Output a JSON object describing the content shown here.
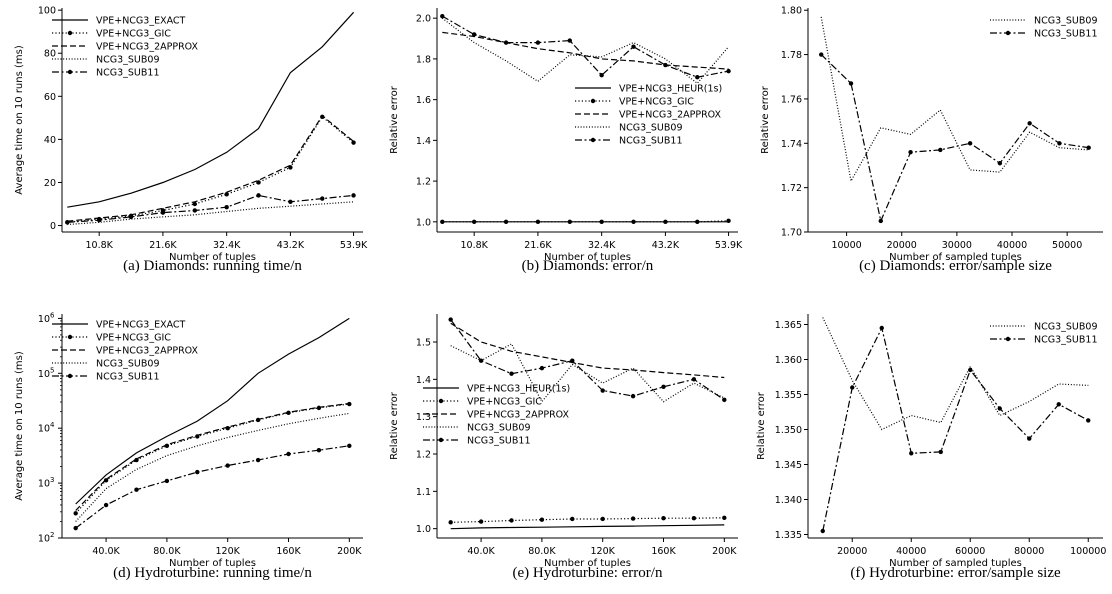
{
  "chart_data": [
    {
      "type": "line",
      "caption": "(a) Diamonds: running time/n",
      "xlabel": "Number of tuples",
      "ylabel": "Average time on 10 runs (ms)",
      "xlim": [
        4500,
        55500
      ],
      "ylim": [
        -3,
        101
      ],
      "xscale": "linear",
      "yscale": "linear",
      "xticks": [
        10800,
        21600,
        32400,
        43200,
        53900
      ],
      "xtick_labels": [
        "10.8K",
        "21.6K",
        "32.4K",
        "43.2K",
        "53.9K"
      ],
      "yticks": [
        0,
        20,
        40,
        60,
        80,
        100
      ],
      "ytick_labels": [
        "0",
        "20",
        "40",
        "60",
        "80",
        "100"
      ],
      "legend_loc": "upper-left",
      "series": [
        {
          "name": "VPE+NCG3_EXACT",
          "style": "solid",
          "x": [
            5400,
            10800,
            16200,
            21600,
            27000,
            32400,
            37800,
            43200,
            48600,
            53900
          ],
          "y": [
            8.5,
            11,
            15,
            20,
            26,
            34,
            45,
            71,
            83,
            99
          ]
        },
        {
          "name": "VPE+NCG3_GIC",
          "style": "dotted-marker",
          "x": [
            5400,
            10800,
            16200,
            21600,
            27000,
            32400,
            37800,
            43200,
            48600,
            53900
          ],
          "y": [
            1.5,
            3,
            4.5,
            7,
            10,
            14.5,
            20,
            27,
            50.5,
            38.5
          ]
        },
        {
          "name": "VPE+NCG3_2APPROX",
          "style": "dashed",
          "x": [
            5400,
            10800,
            16200,
            21600,
            27000,
            32400,
            37800,
            43200,
            48600,
            53900
          ],
          "y": [
            2,
            3.5,
            5,
            8,
            11,
            15.5,
            21,
            28,
            51,
            39
          ]
        },
        {
          "name": "NCG3_SUB09",
          "style": "dotted",
          "x": [
            5400,
            10800,
            16200,
            21600,
            27000,
            32400,
            37800,
            43200,
            48600,
            53900
          ],
          "y": [
            0.5,
            1.5,
            3,
            4,
            5,
            6.5,
            8,
            9,
            10,
            11
          ]
        },
        {
          "name": "NCG3_SUB11",
          "style": "dashdot-marker",
          "x": [
            5400,
            10800,
            16200,
            21600,
            27000,
            32400,
            37800,
            43200,
            48600,
            53900
          ],
          "y": [
            1.5,
            2.5,
            4,
            6,
            7,
            8.5,
            14,
            11,
            12.5,
            14
          ]
        }
      ]
    },
    {
      "type": "line",
      "caption": "(b) Diamonds: error/n",
      "xlabel": "Number of tuples",
      "ylabel": "Relative error",
      "xlim": [
        4500,
        55500
      ],
      "ylim": [
        0.95,
        2.05
      ],
      "xscale": "linear",
      "yscale": "linear",
      "xticks": [
        10800,
        21600,
        32400,
        43200,
        53900
      ],
      "xtick_labels": [
        "10.8K",
        "21.6K",
        "32.4K",
        "43.2K",
        "53.9K"
      ],
      "yticks": [
        1.0,
        1.2,
        1.4,
        1.6,
        1.8,
        2.0
      ],
      "ytick_labels": [
        "1.0",
        "1.2",
        "1.4",
        "1.6",
        "1.8",
        "2.0"
      ],
      "legend_loc": "center-right",
      "series": [
        {
          "name": "VPE+NCG3_HEUR(1s)",
          "style": "solid",
          "x": [
            5400,
            10800,
            16200,
            21600,
            27000,
            32400,
            37800,
            43200,
            48600,
            53900
          ],
          "y": [
            1.0,
            1.0,
            1.0,
            1.0,
            1.0,
            1.0,
            1.0,
            1.0,
            1.0,
            1.0
          ]
        },
        {
          "name": "VPE+NCG3_GIC",
          "style": "dotted-marker",
          "x": [
            5400,
            10800,
            16200,
            21600,
            27000,
            32400,
            37800,
            43200,
            48600,
            53900
          ],
          "y": [
            1.0,
            1.0,
            1.0,
            1.0,
            1.0,
            1.0,
            1.0,
            1.0,
            1.0,
            1.005
          ]
        },
        {
          "name": "VPE+NCG3_2APPROX",
          "style": "dashed",
          "x": [
            5400,
            10800,
            16200,
            21600,
            27000,
            32400,
            37800,
            43200,
            48600,
            53900
          ],
          "y": [
            1.93,
            1.91,
            1.88,
            1.85,
            1.83,
            1.8,
            1.79,
            1.77,
            1.76,
            1.75
          ]
        },
        {
          "name": "NCG3_SUB09",
          "style": "dotted",
          "x": [
            5400,
            10800,
            16200,
            21600,
            27000,
            32400,
            37800,
            43200,
            48600,
            53900
          ],
          "y": [
            2.0,
            1.88,
            1.79,
            1.69,
            1.82,
            1.81,
            1.88,
            1.8,
            1.68,
            1.86
          ]
        },
        {
          "name": "NCG3_SUB11",
          "style": "dashdot-marker",
          "x": [
            5400,
            10800,
            16200,
            21600,
            27000,
            32400,
            37800,
            43200,
            48600,
            53900
          ],
          "y": [
            2.01,
            1.92,
            1.88,
            1.88,
            1.89,
            1.72,
            1.86,
            1.77,
            1.71,
            1.74
          ]
        }
      ]
    },
    {
      "type": "line",
      "caption": "(c) Diamonds: error/sample size",
      "xlabel": "Number of sampled tuples",
      "ylabel": "Relative error",
      "xlim": [
        3000,
        56500
      ],
      "ylim": [
        1.7,
        1.801
      ],
      "xscale": "linear",
      "yscale": "linear",
      "xticks": [
        10000,
        20000,
        30000,
        40000,
        50000
      ],
      "xtick_labels": [
        "10000",
        "20000",
        "30000",
        "40000",
        "50000"
      ],
      "yticks": [
        1.7,
        1.72,
        1.74,
        1.76,
        1.78,
        1.8
      ],
      "ytick_labels": [
        "1.70",
        "1.72",
        "1.74",
        "1.76",
        "1.78",
        "1.80"
      ],
      "legend_loc": "upper-right",
      "series": [
        {
          "name": "NCG3_SUB09",
          "style": "dotted",
          "x": [
            5400,
            10800,
            16200,
            21600,
            27000,
            32400,
            37800,
            43200,
            48600,
            53900
          ],
          "y": [
            1.797,
            1.723,
            1.747,
            1.744,
            1.755,
            1.728,
            1.727,
            1.745,
            1.738,
            1.737
          ]
        },
        {
          "name": "NCG3_SUB11",
          "style": "dashdot-marker",
          "x": [
            5400,
            10800,
            16200,
            21600,
            27000,
            32400,
            37800,
            43200,
            48600,
            53900
          ],
          "y": [
            1.78,
            1.767,
            1.705,
            1.736,
            1.737,
            1.74,
            1.731,
            1.749,
            1.74,
            1.738
          ]
        }
      ]
    },
    {
      "type": "line",
      "caption": "(d) Hydroturbine: running time/n",
      "xlabel": "Number of tuples",
      "ylabel": "Average time on 10 runs (ms)",
      "xlim": [
        11000,
        209000
      ],
      "ylim": [
        2,
        6.08
      ],
      "xscale": "linear",
      "yscale": "log",
      "xticks": [
        40000,
        80000,
        120000,
        160000,
        200000
      ],
      "xtick_labels": [
        "40.0K",
        "80.0K",
        "120K",
        "160K",
        "200K"
      ],
      "yticks": [
        2,
        3,
        4,
        5,
        6
      ],
      "ytick_labels": [
        "10",
        "10",
        "10",
        "10",
        "10"
      ],
      "ytick_exponents": [
        "2",
        "3",
        "4",
        "5",
        "6"
      ],
      "legend_loc": "upper-left",
      "series": [
        {
          "name": "VPE+NCG3_EXACT",
          "style": "solid",
          "x": [
            20000,
            40000,
            60000,
            80000,
            100000,
            120000,
            140000,
            160000,
            180000,
            200000
          ],
          "y": [
            2.62,
            3.15,
            3.55,
            3.85,
            4.13,
            4.5,
            5.0,
            5.35,
            5.65,
            6.0
          ]
        },
        {
          "name": "VPE+NCG3_GIC",
          "style": "dotted-marker",
          "x": [
            20000,
            40000,
            60000,
            80000,
            100000,
            120000,
            140000,
            160000,
            180000,
            200000
          ],
          "y": [
            2.45,
            3.05,
            3.42,
            3.68,
            3.85,
            4.0,
            4.15,
            4.28,
            4.37,
            4.44
          ]
        },
        {
          "name": "VPE+NCG3_2APPROX",
          "style": "dashed",
          "x": [
            20000,
            40000,
            60000,
            80000,
            100000,
            120000,
            140000,
            160000,
            180000,
            200000
          ],
          "y": [
            2.5,
            3.07,
            3.44,
            3.7,
            3.87,
            4.02,
            4.16,
            4.29,
            4.38,
            4.45
          ]
        },
        {
          "name": "NCG3_SUB09",
          "style": "dotted",
          "x": [
            20000,
            40000,
            60000,
            80000,
            100000,
            120000,
            140000,
            160000,
            180000,
            200000
          ],
          "y": [
            2.3,
            2.9,
            3.25,
            3.5,
            3.68,
            3.83,
            3.96,
            4.08,
            4.18,
            4.27
          ]
        },
        {
          "name": "NCG3_SUB11",
          "style": "dashdot-marker",
          "x": [
            20000,
            40000,
            60000,
            80000,
            100000,
            120000,
            140000,
            160000,
            180000,
            200000
          ],
          "y": [
            2.18,
            2.6,
            2.88,
            3.04,
            3.2,
            3.32,
            3.42,
            3.53,
            3.6,
            3.68
          ]
        }
      ]
    },
    {
      "type": "line",
      "caption": "(e) Hydroturbine: error/n",
      "xlabel": "Number of tuples",
      "ylabel": "Relative error",
      "xlim": [
        11000,
        209000
      ],
      "ylim": [
        0.975,
        1.575
      ],
      "xscale": "linear",
      "yscale": "linear",
      "xticks": [
        40000,
        80000,
        120000,
        160000,
        200000
      ],
      "xtick_labels": [
        "40.0K",
        "80.0K",
        "120K",
        "160K",
        "200K"
      ],
      "yticks": [
        1.0,
        1.1,
        1.2,
        1.3,
        1.4,
        1.5
      ],
      "ytick_labels": [
        "1.0",
        "1.1",
        "1.2",
        "1.3",
        "1.4",
        "1.5"
      ],
      "legend_loc": "center-left",
      "series": [
        {
          "name": "VPE+NCG3_HEUR(1s)",
          "style": "solid",
          "x": [
            20000,
            40000,
            60000,
            80000,
            100000,
            120000,
            140000,
            160000,
            180000,
            200000
          ],
          "y": [
            1.0,
            1.002,
            1.003,
            1.004,
            1.005,
            1.006,
            1.007,
            1.008,
            1.009,
            1.01
          ]
        },
        {
          "name": "VPE+NCG3_GIC",
          "style": "dotted-marker",
          "x": [
            20000,
            40000,
            60000,
            80000,
            100000,
            120000,
            140000,
            160000,
            180000,
            200000
          ],
          "y": [
            1.017,
            1.019,
            1.022,
            1.024,
            1.026,
            1.026,
            1.027,
            1.028,
            1.028,
            1.029
          ]
        },
        {
          "name": "VPE+NCG3_2APPROX",
          "style": "dashed",
          "x": [
            20000,
            40000,
            60000,
            80000,
            100000,
            120000,
            140000,
            160000,
            180000,
            200000
          ],
          "y": [
            1.55,
            1.5,
            1.475,
            1.46,
            1.445,
            1.43,
            1.425,
            1.418,
            1.412,
            1.405
          ]
        },
        {
          "name": "NCG3_SUB09",
          "style": "dotted",
          "x": [
            20000,
            40000,
            60000,
            80000,
            100000,
            120000,
            140000,
            160000,
            180000,
            200000
          ],
          "y": [
            1.49,
            1.45,
            1.495,
            1.34,
            1.44,
            1.39,
            1.43,
            1.34,
            1.39,
            1.35
          ]
        },
        {
          "name": "NCG3_SUB11",
          "style": "dashdot-marker",
          "x": [
            20000,
            40000,
            60000,
            80000,
            100000,
            120000,
            140000,
            160000,
            180000,
            200000
          ],
          "y": [
            1.56,
            1.45,
            1.415,
            1.43,
            1.45,
            1.37,
            1.355,
            1.38,
            1.4,
            1.345
          ]
        }
      ]
    },
    {
      "type": "line",
      "caption": "(f) Hydroturbine: error/sample size",
      "xlabel": "Number of sampled tuples",
      "ylabel": "Relative error",
      "xlim": [
        5000,
        105000
      ],
      "ylim": [
        1.3345,
        1.3665
      ],
      "xscale": "linear",
      "yscale": "linear",
      "xticks": [
        20000,
        40000,
        60000,
        80000,
        100000
      ],
      "xtick_labels": [
        "20000",
        "40000",
        "60000",
        "80000",
        "100000"
      ],
      "yticks": [
        1.335,
        1.34,
        1.345,
        1.35,
        1.355,
        1.36,
        1.365
      ],
      "ytick_labels": [
        "1.335",
        "1.340",
        "1.345",
        "1.350",
        "1.355",
        "1.360",
        "1.365"
      ],
      "legend_loc": "upper-right",
      "series": [
        {
          "name": "NCG3_SUB09",
          "style": "dotted",
          "x": [
            10000,
            20000,
            30000,
            40000,
            50000,
            60000,
            70000,
            80000,
            90000,
            100000
          ],
          "y": [
            1.366,
            1.357,
            1.35,
            1.352,
            1.351,
            1.359,
            1.352,
            1.354,
            1.3565,
            1.3563
          ]
        },
        {
          "name": "NCG3_SUB11",
          "style": "dashdot-marker",
          "x": [
            10000,
            20000,
            30000,
            40000,
            50000,
            60000,
            70000,
            80000,
            90000,
            100000
          ],
          "y": [
            1.3355,
            1.356,
            1.3645,
            1.3466,
            1.3468,
            1.3585,
            1.353,
            1.3487,
            1.3536,
            1.3513
          ]
        }
      ]
    }
  ]
}
